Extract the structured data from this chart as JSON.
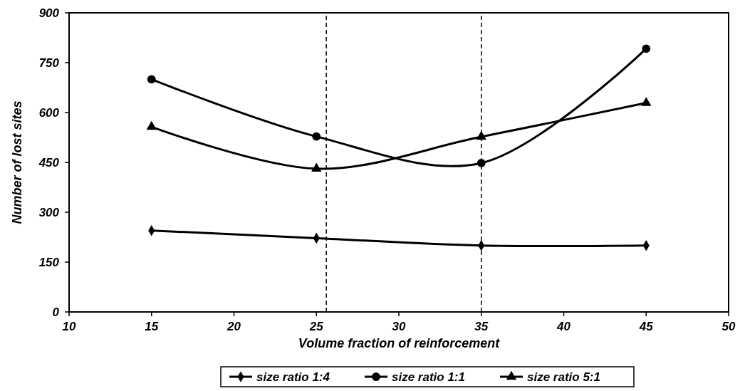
{
  "chart_data": {
    "type": "line",
    "xlabel": "Volume fraction of reinforcement",
    "ylabel": "Number of lost sites",
    "xlim": [
      10,
      50
    ],
    "xticks": [
      10,
      15,
      20,
      25,
      30,
      35,
      40,
      45,
      50
    ],
    "ylim": [
      0,
      900
    ],
    "yticks": [
      0,
      150,
      300,
      450,
      600,
      750,
      900
    ],
    "legend": "bottom",
    "grid": false,
    "line_style": "solid",
    "series": [
      {
        "name": "size ratio 1:4",
        "color": "#000000",
        "marker": "diamond",
        "x": [
          15,
          25,
          35,
          45
        ],
        "values": [
          245,
          222,
          200,
          200
        ]
      },
      {
        "name": "size ratio 1:1",
        "color": "#000000",
        "marker": "circle",
        "x": [
          15,
          25,
          35,
          45
        ],
        "values": [
          700,
          528,
          448,
          792
        ]
      },
      {
        "name": "size ratio 5:1",
        "color": "#000000",
        "marker": "triangle",
        "x": [
          15,
          25,
          35,
          45
        ],
        "values": [
          557,
          431,
          527,
          629
        ]
      }
    ],
    "ref_lines": [
      {
        "axis": "x",
        "value": 25.6,
        "color": "#000000",
        "line_style": "dashed"
      },
      {
        "axis": "x",
        "value": 35,
        "color": "#000000",
        "line_style": "dashed"
      }
    ]
  }
}
